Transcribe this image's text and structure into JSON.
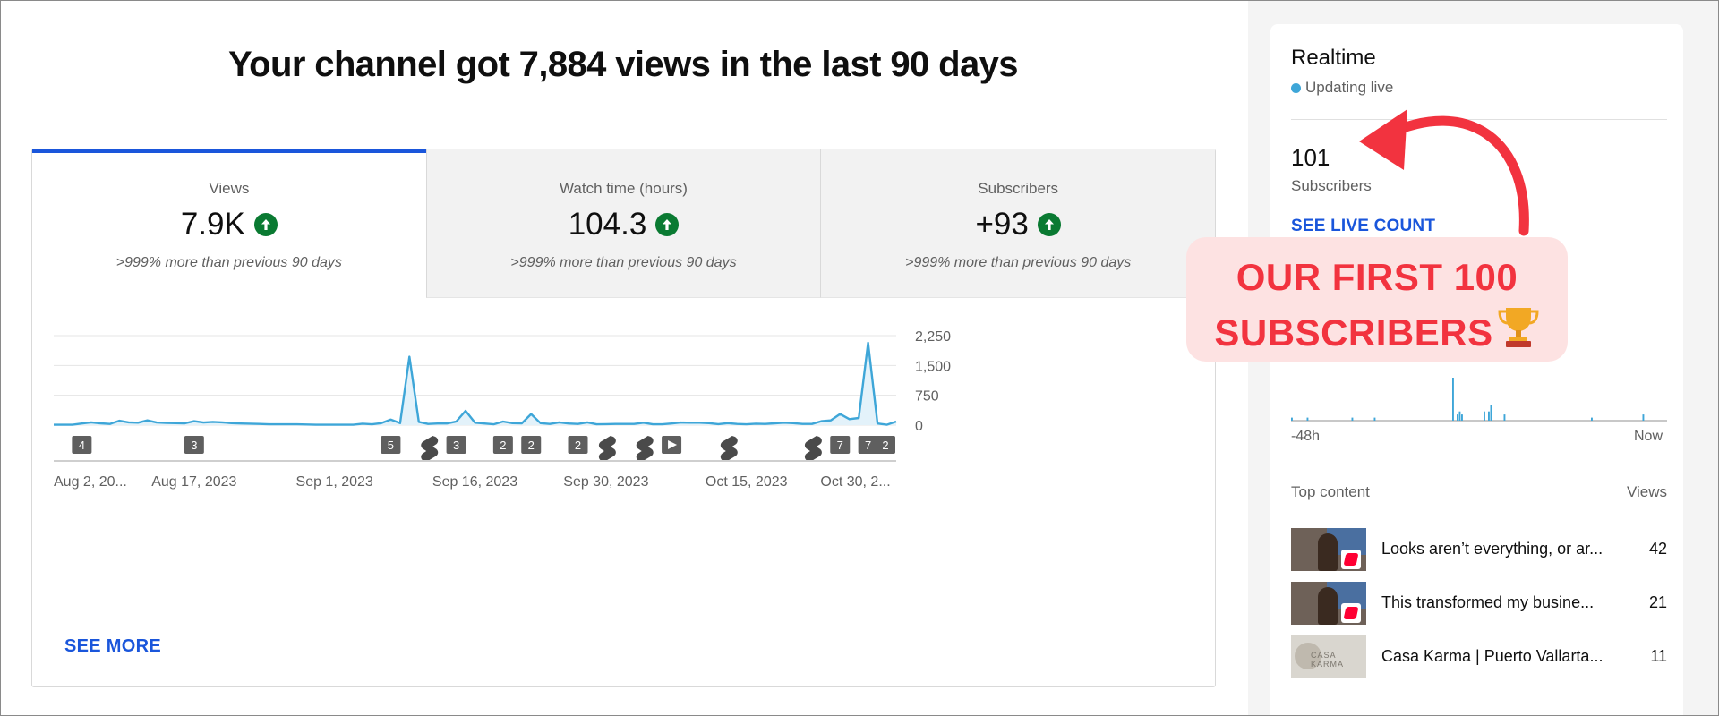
{
  "headline": "Your channel got 7,884 views in the last 90 days",
  "tabs": [
    {
      "label": "Views",
      "value": "7.9K",
      "compare": ">999% more than previous 90 days",
      "active": true
    },
    {
      "label": "Watch time (hours)",
      "value": "104.3",
      "compare": ">999% more than previous 90 days",
      "active": false
    },
    {
      "label": "Subscribers",
      "value": "+93",
      "compare": ">999% more than previous 90 days",
      "active": false
    }
  ],
  "see_more": "SEE MORE",
  "chart_data": {
    "type": "area",
    "series": [
      {
        "values": [
          10,
          10,
          10,
          40,
          70,
          45,
          30,
          110,
          70,
          60,
          120,
          65,
          55,
          50,
          45,
          100,
          65,
          80,
          70,
          50,
          40,
          35,
          30,
          20,
          20,
          20,
          20,
          15,
          10,
          10,
          10,
          10,
          10,
          35,
          20,
          50,
          140,
          50,
          1720,
          80,
          30,
          40,
          40,
          90,
          360,
          60,
          40,
          20,
          90,
          50,
          45,
          280,
          50,
          30,
          70,
          40,
          30,
          70,
          20,
          25,
          30,
          30,
          30,
          60,
          20,
          20,
          40,
          65,
          60,
          60,
          50,
          25,
          50,
          30,
          20,
          35,
          30,
          45,
          60,
          50,
          30,
          30,
          100,
          120,
          280,
          150,
          180,
          2070,
          40,
          10,
          90
        ]
      }
    ],
    "x_tick_labels": [
      "Aug 2, 20...",
      "Aug 17, 2023",
      "Sep 1, 2023",
      "Sep 16, 2023",
      "Sep 30, 2023",
      "Oct 15, 2023",
      "Oct 30, 2..."
    ],
    "x_tick_days": [
      0,
      15,
      30,
      45,
      59,
      74,
      89
    ],
    "y_ticks": [
      "2,250",
      "1,500",
      "750",
      "0"
    ],
    "y_tick_values": [
      2250,
      1500,
      750,
      0
    ],
    "ylim": [
      0,
      2250
    ],
    "grid": true,
    "markers": [
      {
        "day": 3,
        "kind": "num",
        "text": "4"
      },
      {
        "day": 15,
        "kind": "num",
        "text": "3"
      },
      {
        "day": 36,
        "kind": "num",
        "text": "5"
      },
      {
        "day": 40,
        "kind": "shorts",
        "text": ""
      },
      {
        "day": 43,
        "kind": "num",
        "text": "3"
      },
      {
        "day": 48,
        "kind": "num",
        "text": "2"
      },
      {
        "day": 51,
        "kind": "num",
        "text": "2"
      },
      {
        "day": 56,
        "kind": "num",
        "text": "2"
      },
      {
        "day": 59,
        "kind": "shorts",
        "text": ""
      },
      {
        "day": 63,
        "kind": "shorts",
        "text": ""
      },
      {
        "day": 66,
        "kind": "play",
        "text": ""
      },
      {
        "day": 72,
        "kind": "shorts",
        "text": ""
      },
      {
        "day": 81,
        "kind": "shorts",
        "text": ""
      },
      {
        "day": 84,
        "kind": "num",
        "text": "7"
      },
      {
        "day": 87,
        "kind": "num",
        "text": "7"
      },
      {
        "day": 91,
        "kind": "num",
        "text": "2"
      }
    ]
  },
  "realtime": {
    "title": "Realtime",
    "status": "Updating live",
    "count": "101",
    "count_label": "Subscribers",
    "live_link": "SEE LIVE COUNT",
    "axis_left": "-48h",
    "axis_right": "Now",
    "bars": [
      1,
      0,
      0,
      0,
      0,
      0,
      0,
      1,
      0,
      0,
      0,
      0,
      0,
      0,
      0,
      0,
      0,
      0,
      0,
      0,
      0,
      0,
      0,
      0,
      0,
      0,
      0,
      1,
      0,
      0,
      0,
      0,
      0,
      0,
      0,
      0,
      0,
      1,
      0,
      0,
      0,
      0,
      0,
      0,
      0,
      0,
      0,
      0,
      0,
      0,
      0,
      0,
      0,
      0,
      0,
      0,
      0,
      0,
      0,
      0,
      0,
      0,
      0,
      0,
      0,
      0,
      0,
      0,
      0,
      0,
      0,
      0,
      14,
      0,
      2,
      3,
      2,
      0,
      0,
      0,
      0,
      0,
      0,
      0,
      0,
      0,
      3,
      0,
      3,
      5,
      0,
      0,
      0,
      0,
      0,
      2,
      0,
      0,
      0,
      0,
      0,
      0,
      0,
      0,
      0,
      0,
      0,
      0,
      0,
      0,
      0,
      0,
      0,
      0,
      0,
      0,
      0,
      0,
      0,
      0,
      0,
      0,
      0,
      0,
      0,
      0,
      0,
      0,
      0,
      0,
      0,
      0,
      0,
      0,
      1,
      0,
      0,
      0,
      0,
      0,
      0,
      0,
      0,
      0,
      0,
      0,
      0,
      0,
      0,
      0,
      0,
      0,
      0,
      0,
      0,
      0,
      0,
      2,
      0,
      0,
      0,
      0,
      0,
      0,
      0,
      0,
      0,
      0
    ],
    "top_content_label": "Top content",
    "views_label": "Views",
    "top_content": [
      {
        "title": "Looks aren’t everything, or ar...",
        "views": "42",
        "thumb": "shorts"
      },
      {
        "title": "This transformed my busine...",
        "views": "21",
        "thumb": "shorts"
      },
      {
        "title": "Casa Karma | Puerto Vallarta...",
        "views": "11",
        "thumb": "light"
      }
    ]
  },
  "overlay": {
    "line1": "OUR FIRST 100",
    "line2": "SUBSCRIBERS"
  },
  "colors": {
    "accent_blue": "#1a56db",
    "line": "#3ea6d8",
    "fill": "#e3f2fa",
    "up_green": "#0a7a32",
    "overlay_bg": "#fde2e2",
    "overlay_text": "#f2333f",
    "marker_bg": "#5f5f5f"
  }
}
